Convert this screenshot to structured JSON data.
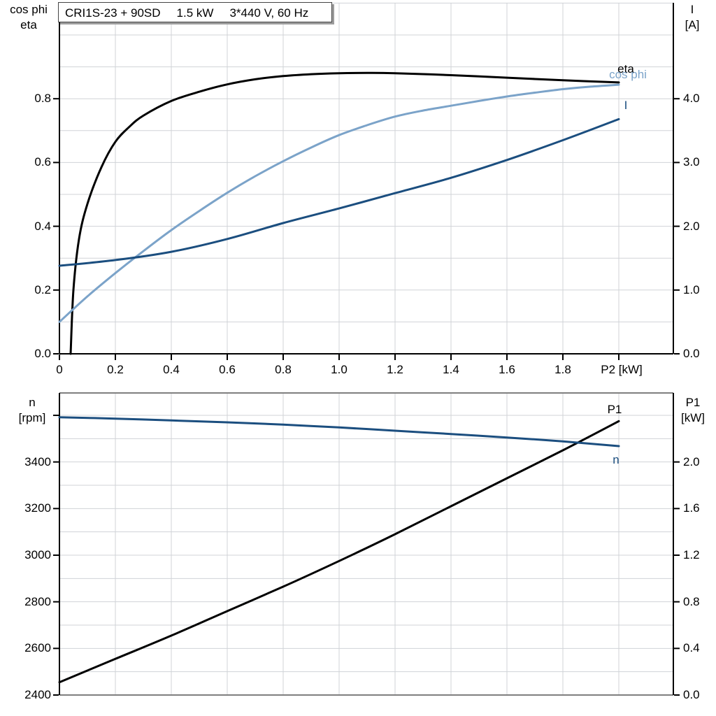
{
  "title_box": {
    "part1": "CRI1S-23 + 90SD",
    "part2": "1.5 kW",
    "part3": "3*440 V, 60 Hz"
  },
  "colors": {
    "grid": "#d0d3d7",
    "frame_gray": "#7f7f7f",
    "axis_black": "#000000",
    "dark_blue": "#1b4e7f",
    "light_blue": "#7ba3c9",
    "black_curve": "#000000"
  },
  "chart_data": [
    {
      "type": "line",
      "title": "CRI1S-23 + 90SD  1.5 kW  3*440 V, 60 Hz",
      "x_axis": {
        "label": "P2 [kW]",
        "min": 0,
        "max": 2.195,
        "tick_step": 0.2,
        "grid_max": 2.0,
        "tick_labels": [
          "0",
          "0.2",
          "0.4",
          "0.6",
          "0.8",
          "1.0",
          "1.2",
          "1.4",
          "1.6",
          "1.8"
        ]
      },
      "left_axis": {
        "line1": "cos phi",
        "line2": "eta",
        "min": 0,
        "max": 1.105,
        "minor_step": 0.1,
        "tick_values": [
          0,
          0.2,
          0.4,
          0.6,
          0.8
        ],
        "tick_labels": [
          "0.0",
          "0.2",
          "0.4",
          "0.6",
          "0.8"
        ]
      },
      "right_axis": {
        "line1": "I",
        "line2": "[A]",
        "min": 0,
        "max": 5.52,
        "minor_step": 0.5,
        "tick_values": [
          0,
          1,
          2,
          3,
          4
        ],
        "tick_labels": [
          "0.0",
          "1.0",
          "2.0",
          "3.0",
          "4.0"
        ]
      },
      "series": [
        {
          "name": "eta",
          "axis": "left",
          "color": "#000000",
          "points": [
            [
              0.04,
              0
            ],
            [
              0.05,
              0.2
            ],
            [
              0.07,
              0.36
            ],
            [
              0.1,
              0.47
            ],
            [
              0.15,
              0.585
            ],
            [
              0.2,
              0.665
            ],
            [
              0.25,
              0.712
            ],
            [
              0.3,
              0.747
            ],
            [
              0.4,
              0.793
            ],
            [
              0.5,
              0.822
            ],
            [
              0.6,
              0.845
            ],
            [
              0.7,
              0.861
            ],
            [
              0.8,
              0.871
            ],
            [
              0.9,
              0.877
            ],
            [
              1.0,
              0.88
            ],
            [
              1.1,
              0.881
            ],
            [
              1.2,
              0.88
            ],
            [
              1.4,
              0.874
            ],
            [
              1.6,
              0.866
            ],
            [
              1.8,
              0.858
            ],
            [
              2.0,
              0.851
            ]
          ]
        },
        {
          "name": "cos phi",
          "axis": "left",
          "color": "#7ba3c9",
          "points": [
            [
              0,
              0.1
            ],
            [
              0.1,
              0.18
            ],
            [
              0.2,
              0.253
            ],
            [
              0.3,
              0.322
            ],
            [
              0.4,
              0.388
            ],
            [
              0.5,
              0.448
            ],
            [
              0.6,
              0.505
            ],
            [
              0.7,
              0.557
            ],
            [
              0.8,
              0.604
            ],
            [
              0.9,
              0.647
            ],
            [
              1.0,
              0.686
            ],
            [
              1.1,
              0.717
            ],
            [
              1.2,
              0.744
            ],
            [
              1.3,
              0.763
            ],
            [
              1.4,
              0.778
            ],
            [
              1.5,
              0.793
            ],
            [
              1.6,
              0.807
            ],
            [
              1.7,
              0.819
            ],
            [
              1.8,
              0.83
            ],
            [
              1.9,
              0.838
            ],
            [
              2.0,
              0.844
            ]
          ]
        },
        {
          "name": "I",
          "axis": "right",
          "color": "#1b4e7f",
          "points": [
            [
              0,
              1.38
            ],
            [
              0.2,
              1.47
            ],
            [
              0.4,
              1.6
            ],
            [
              0.6,
              1.8
            ],
            [
              0.8,
              2.05
            ],
            [
              1.0,
              2.28
            ],
            [
              1.2,
              2.52
            ],
            [
              1.4,
              2.76
            ],
            [
              1.6,
              3.04
            ],
            [
              1.8,
              3.35
            ],
            [
              2.0,
              3.68
            ]
          ]
        }
      ]
    },
    {
      "type": "line",
      "x_axis": {
        "label": "",
        "min": 0,
        "max": 2.195,
        "tick_step": 0.2,
        "grid_max": 2.0,
        "tick_labels": []
      },
      "left_axis": {
        "line1": "n",
        "line2": "[rpm]",
        "min": 2400,
        "max": 3696,
        "minor_step": 100,
        "tick_values": [
          2400,
          2600,
          2800,
          3000,
          3200,
          3400,
          3600
        ],
        "tick_labels": [
          "2400",
          "2600",
          "2800",
          "3000",
          "3200",
          "3400",
          ""
        ]
      },
      "right_axis": {
        "line1": "P1",
        "line2": "[kW]",
        "min": 0,
        "max": 2.59,
        "minor_step": 0.2,
        "tick_values": [
          0,
          0.4,
          0.8,
          1.2,
          1.6,
          2.0
        ],
        "tick_labels": [
          "0.0",
          "0.4",
          "0.8",
          "1.2",
          "1.6",
          "2.0"
        ]
      },
      "series": [
        {
          "name": "P1",
          "axis": "right",
          "color": "#000000",
          "points": [
            [
              0,
              0.11
            ],
            [
              0.2,
              0.31
            ],
            [
              0.4,
              0.51
            ],
            [
              0.6,
              0.72
            ],
            [
              0.8,
              0.93
            ],
            [
              1.0,
              1.15
            ],
            [
              1.2,
              1.38
            ],
            [
              1.4,
              1.62
            ],
            [
              1.6,
              1.86
            ],
            [
              1.8,
              2.1
            ],
            [
              2.0,
              2.35
            ]
          ]
        },
        {
          "name": "n",
          "axis": "left",
          "color": "#1b4e7f",
          "points": [
            [
              0,
              3592
            ],
            [
              0.2,
              3586
            ],
            [
              0.4,
              3578
            ],
            [
              0.6,
              3570
            ],
            [
              0.8,
              3560
            ],
            [
              1.0,
              3548
            ],
            [
              1.2,
              3534
            ],
            [
              1.4,
              3520
            ],
            [
              1.6,
              3505
            ],
            [
              1.8,
              3488
            ],
            [
              2.0,
              3468
            ]
          ]
        }
      ]
    }
  ]
}
